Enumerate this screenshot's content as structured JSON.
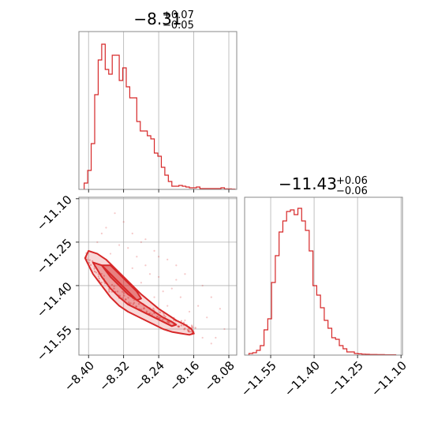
{
  "colors": {
    "series": "#d62728",
    "frame": "#888888",
    "grid": "#b0b0b0",
    "text": "#000000"
  },
  "chart_data": [
    {
      "type": "histogram",
      "panel": "top-left",
      "title": {
        "main": "−8.31",
        "sup": "+0.07",
        "sub": "−0.05"
      },
      "xlim": [
        -8.422,
        -8.062
      ],
      "ylim": [
        0,
        1.0
      ],
      "grid": true,
      "bin_edges": [
        -8.41,
        -8.402,
        -8.394,
        -8.386,
        -8.378,
        -8.37,
        -8.362,
        -8.354,
        -8.346,
        -8.338,
        -8.33,
        -8.322,
        -8.314,
        -8.306,
        -8.298,
        -8.29,
        -8.282,
        -8.274,
        -8.266,
        -8.258,
        -8.25,
        -8.242,
        -8.234,
        -8.226,
        -8.218,
        -8.21,
        -8.202,
        -8.194,
        -8.186,
        -8.178,
        -8.17,
        -8.162,
        -8.154,
        -8.146,
        -8.138,
        -8.13,
        -8.122,
        -8.114,
        -8.106,
        -8.098,
        -8.09,
        -8.082,
        -8.074,
        -8.066
      ],
      "counts": [
        0.04,
        0.12,
        0.29,
        0.6,
        0.82,
        0.92,
        0.76,
        0.73,
        0.85,
        0.85,
        0.69,
        0.77,
        0.65,
        0.58,
        0.58,
        0.43,
        0.37,
        0.37,
        0.34,
        0.32,
        0.23,
        0.21,
        0.14,
        0.09,
        0.05,
        0.02,
        0.02,
        0.025,
        0.02,
        0.015,
        0.01,
        0.01,
        0.015,
        0.005,
        0.005,
        0.005,
        0.005,
        0.005,
        0.005,
        0.01,
        0.003,
        0.003,
        0.002
      ]
    },
    {
      "type": "scatter",
      "panel": "bottom-left",
      "subtype": "2d-density-contour",
      "xlim": [
        -8.422,
        -8.062
      ],
      "ylim": [
        -11.64,
        -11.095
      ],
      "grid": true,
      "x_ticks": [
        "−8.40",
        "−8.32",
        "−8.24",
        "−8.16",
        "−8.08"
      ],
      "x_tick_values": [
        -8.4,
        -8.32,
        -8.24,
        -8.16,
        -8.08
      ],
      "y_ticks": [
        "−11.10",
        "−11.25",
        "−11.40",
        "−11.55"
      ],
      "y_tick_values": [
        -11.1,
        -11.25,
        -11.4,
        -11.55
      ],
      "density_ridge": {
        "x": [
          -8.405,
          -8.38,
          -8.35,
          -8.32,
          -8.29,
          -8.26,
          -8.23,
          -8.2,
          -8.17,
          -8.16
        ],
        "y": [
          -11.3,
          -11.36,
          -11.41,
          -11.44,
          -11.47,
          -11.49,
          -11.51,
          -11.53,
          -11.55,
          -11.56
        ]
      },
      "contour_levels": [
        {
          "label": "outer",
          "x": [
            -8.408,
            -8.39,
            -8.37,
            -8.35,
            -8.33,
            -8.31,
            -8.29,
            -8.27,
            -8.25,
            -8.23,
            -8.21,
            -8.19,
            -8.17,
            -8.16,
            -8.165,
            -8.18,
            -8.2,
            -8.22,
            -8.24,
            -8.26,
            -8.28,
            -8.3,
            -8.32,
            -8.34,
            -8.36,
            -8.38,
            -8.4,
            -8.408
          ],
          "y": [
            -11.305,
            -11.36,
            -11.4,
            -11.44,
            -11.47,
            -11.49,
            -11.505,
            -11.52,
            -11.535,
            -11.55,
            -11.56,
            -11.565,
            -11.57,
            -11.565,
            -11.55,
            -11.535,
            -11.52,
            -11.5,
            -11.48,
            -11.455,
            -11.43,
            -11.4,
            -11.37,
            -11.34,
            -11.31,
            -11.29,
            -11.28,
            -11.305
          ]
        },
        {
          "label": "middle",
          "x": [
            -8.39,
            -8.37,
            -8.35,
            -8.33,
            -8.31,
            -8.29,
            -8.27,
            -8.25,
            -8.23,
            -8.21,
            -8.2,
            -8.21,
            -8.23,
            -8.25,
            -8.27,
            -8.29,
            -8.31,
            -8.33,
            -8.35,
            -8.37,
            -8.39
          ],
          "y": [
            -11.32,
            -11.37,
            -11.41,
            -11.44,
            -11.465,
            -11.48,
            -11.495,
            -11.51,
            -11.525,
            -11.54,
            -11.535,
            -11.525,
            -11.51,
            -11.49,
            -11.47,
            -11.45,
            -11.42,
            -11.39,
            -11.36,
            -11.33,
            -11.32
          ]
        },
        {
          "label": "inner",
          "x": [
            -8.37,
            -8.35,
            -8.33,
            -8.31,
            -8.29,
            -8.28,
            -8.29,
            -8.31,
            -8.33,
            -8.35,
            -8.37
          ],
          "y": [
            -11.33,
            -11.37,
            -11.4,
            -11.43,
            -11.45,
            -11.445,
            -11.42,
            -11.39,
            -11.36,
            -11.33,
            -11.33
          ]
        }
      ],
      "scatter_points": {
        "x": [
          -8.32,
          -8.3,
          -8.28,
          -8.25,
          -8.22,
          -8.2,
          -8.18,
          -8.14,
          -8.12,
          -8.1,
          -8.09,
          -8.34,
          -8.36,
          -8.31,
          -8.27,
          -8.24,
          -8.21,
          -8.19,
          -8.15,
          -8.13,
          -8.11,
          -8.29,
          -8.26,
          -8.23,
          -8.17,
          -8.33,
          -8.35,
          -8.38,
          -8.37,
          -8.3,
          -8.28,
          -8.25,
          -8.22,
          -8.18,
          -8.16,
          -8.14,
          -8.12,
          -8.2,
          -8.24,
          -8.27
        ],
        "y": [
          -11.18,
          -11.22,
          -11.25,
          -11.28,
          -11.31,
          -11.33,
          -11.36,
          -11.4,
          -11.44,
          -11.48,
          -11.55,
          -11.15,
          -11.2,
          -11.27,
          -11.33,
          -11.37,
          -11.41,
          -11.44,
          -11.47,
          -11.51,
          -11.58,
          -11.3,
          -11.36,
          -11.42,
          -11.49,
          -11.26,
          -11.29,
          -11.25,
          -11.22,
          -11.34,
          -11.39,
          -11.44,
          -11.47,
          -11.52,
          -11.56,
          -11.58,
          -11.6,
          -11.38,
          -11.3,
          -11.24
        ]
      }
    },
    {
      "type": "histogram",
      "panel": "bottom-right",
      "title": {
        "main": "−11.43",
        "sup": "+0.06",
        "sub": "−0.06"
      },
      "xlim": [
        -11.64,
        -11.095
      ],
      "ylim": [
        0,
        1.0
      ],
      "grid": true,
      "x_ticks": [
        "−11.55",
        "−11.40",
        "−11.25",
        "−11.10"
      ],
      "x_tick_values": [
        -11.55,
        -11.4,
        -11.25,
        -11.1
      ],
      "bin_edges": [
        -11.625,
        -11.612,
        -11.599,
        -11.586,
        -11.573,
        -11.56,
        -11.547,
        -11.534,
        -11.521,
        -11.508,
        -11.495,
        -11.482,
        -11.469,
        -11.456,
        -11.443,
        -11.43,
        -11.417,
        -11.404,
        -11.391,
        -11.378,
        -11.365,
        -11.352,
        -11.339,
        -11.326,
        -11.313,
        -11.3,
        -11.287,
        -11.274,
        -11.261,
        -11.248,
        -11.235,
        -11.222,
        -11.209,
        -11.196,
        -11.183,
        -11.17,
        -11.157,
        -11.144,
        -11.131,
        -11.118
      ],
      "counts": [
        0.01,
        0.015,
        0.03,
        0.06,
        0.16,
        0.23,
        0.46,
        0.63,
        0.78,
        0.85,
        0.91,
        0.92,
        0.89,
        0.93,
        0.85,
        0.79,
        0.66,
        0.44,
        0.38,
        0.3,
        0.22,
        0.17,
        0.11,
        0.1,
        0.06,
        0.04,
        0.02,
        0.02,
        0.01,
        0.008,
        0.006,
        0.005,
        0.004,
        0.004,
        0.003,
        0.003,
        0.002,
        0.002,
        0.002
      ]
    }
  ]
}
